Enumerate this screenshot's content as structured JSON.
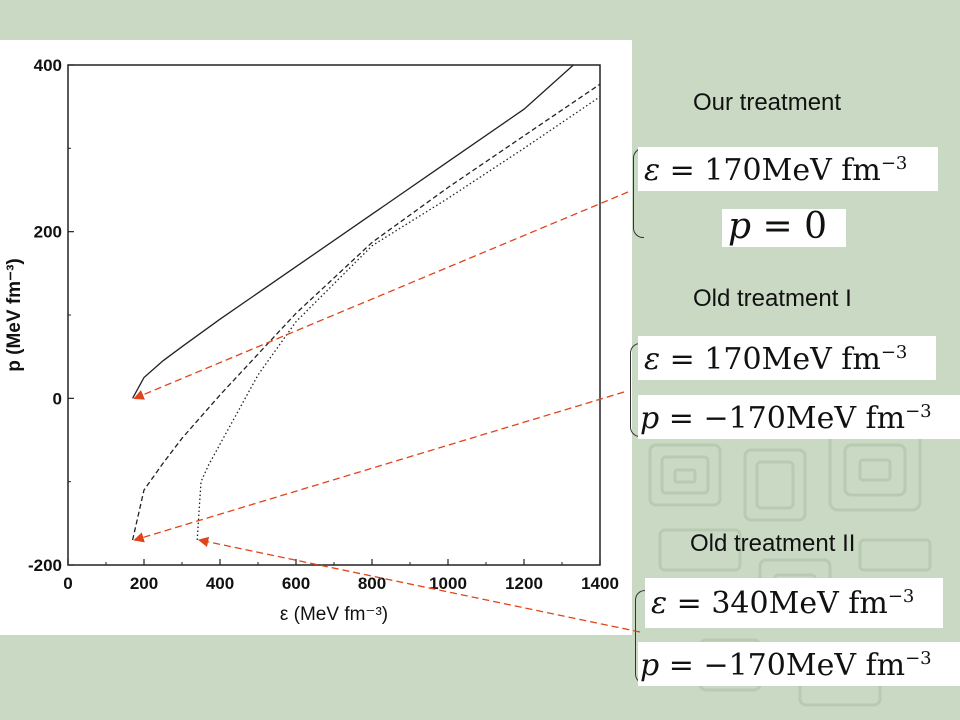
{
  "chart_data": {
    "type": "line",
    "xlabel": "ε (MeV fm⁻³)",
    "ylabel": "p (MeV fm⁻³)",
    "xlim": [
      0,
      1400
    ],
    "ylim": [
      -200,
      400
    ],
    "xticks": [
      "0",
      "200",
      "400",
      "600",
      "800",
      "1000",
      "1200",
      "1400"
    ],
    "yticks": [
      "400",
      "200",
      "0",
      "-200"
    ],
    "grid": false,
    "series": [
      {
        "style": "solid",
        "x": [
          170,
          200,
          250,
          300,
          400,
          600,
          800,
          1000,
          1200,
          1330
        ],
        "y": [
          0,
          25,
          45,
          62,
          95,
          158,
          221,
          284,
          347,
          400
        ]
      },
      {
        "style": "dashed",
        "x": [
          170,
          200,
          250,
          300,
          400,
          600,
          800,
          1000,
          1200,
          1400
        ],
        "y": [
          -170,
          -110,
          -78,
          -48,
          4,
          102,
          187,
          253,
          315,
          377
        ]
      },
      {
        "style": "dotted",
        "x": [
          340,
          350,
          370,
          400,
          500,
          600,
          800,
          1000,
          1200,
          1400
        ],
        "y": [
          -170,
          -100,
          -80,
          -55,
          28,
          92,
          183,
          240,
          300,
          362
        ]
      }
    ]
  },
  "colors": {
    "background": "#c9d9c4",
    "arrow": "#e0441a",
    "curve": "#222222"
  },
  "annotations": [
    {
      "title": "Our treatment",
      "eps_line": {
        "lhs": "ε",
        "eq": "=",
        "val": "170MeV fm",
        "exp": "−3"
      },
      "p_line": {
        "lhs": "p",
        "eq": "=",
        "val": "0",
        "exp": ""
      },
      "point": [
        170,
        0
      ]
    },
    {
      "title": "Old treatment I",
      "eps_line": {
        "lhs": "ε",
        "eq": "=",
        "val": "170MeV fm",
        "exp": "−3"
      },
      "p_line": {
        "lhs": "p",
        "eq": "=",
        "val": "−170MeV fm",
        "exp": "−3"
      },
      "point": [
        170,
        -170
      ]
    },
    {
      "title": "Old treatment II",
      "eps_line": {
        "lhs": "ε",
        "eq": "=",
        "val": "340MeV fm",
        "exp": "−3"
      },
      "p_line": {
        "lhs": "p",
        "eq": "=",
        "val": "−170MeV fm",
        "exp": "−3"
      },
      "point": [
        340,
        -170
      ]
    }
  ]
}
